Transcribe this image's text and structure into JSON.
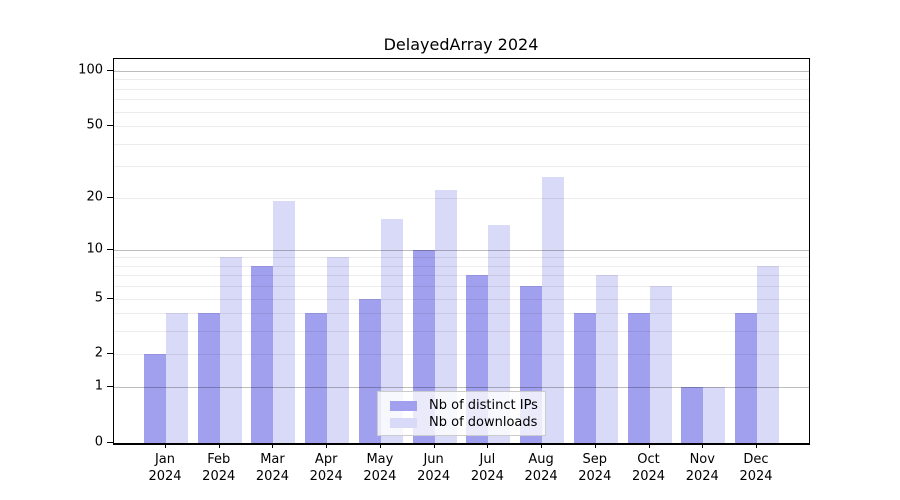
{
  "title": "DelayedArray 2024",
  "chart_data": {
    "type": "bar",
    "title": "DelayedArray 2024",
    "categories": [
      "Jan",
      "Feb",
      "Mar",
      "Apr",
      "May",
      "Jun",
      "Jul",
      "Aug",
      "Sep",
      "Oct",
      "Nov",
      "Dec"
    ],
    "category_year": "2024",
    "series": [
      {
        "name": "Nb of distinct IPs",
        "color": "#a0a0ee",
        "values": [
          2,
          4,
          8,
          4,
          5,
          10,
          7,
          6,
          4,
          4,
          1,
          4
        ]
      },
      {
        "name": "Nb of downloads",
        "color": "#d9d9f8",
        "values": [
          4,
          9,
          19,
          9,
          15,
          22,
          14,
          26,
          7,
          6,
          1,
          8
        ]
      }
    ],
    "y_axis": {
      "scale": "log1p",
      "ticks": [
        0,
        1,
        2,
        5,
        10,
        20,
        50,
        100
      ],
      "major_gridlines": [
        1,
        10,
        100
      ],
      "minor_gridlines": [
        2,
        3,
        4,
        5,
        6,
        7,
        8,
        9,
        20,
        30,
        40,
        50,
        60,
        70,
        80,
        90
      ],
      "ylim": [
        0,
        116
      ]
    },
    "x_axis": {
      "tick_label_lines": 2
    },
    "legend": {
      "position": "bottom-center",
      "entries": [
        "Nb of distinct IPs",
        "Nb of downloads"
      ]
    },
    "grid": true
  },
  "colors": {
    "bar_distinct_ips": "#a0a0ee",
    "bar_downloads": "#d9d9f8",
    "major_grid": "#bdbdbd",
    "minor_grid": "#ececec",
    "axis": "#000000",
    "legend_border": "#cccccc",
    "legend_background": "rgba(255,255,255,0.78)"
  }
}
